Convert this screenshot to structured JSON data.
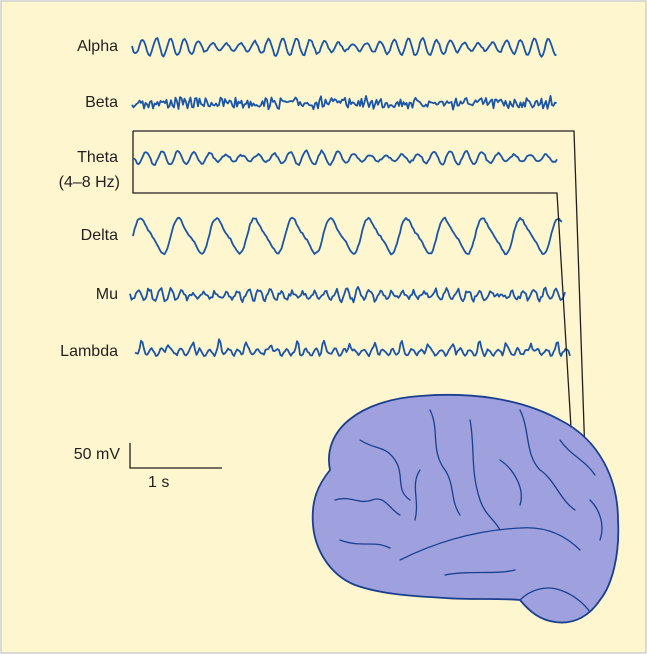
{
  "waves": [
    {
      "label": "Alpha"
    },
    {
      "label": "Beta"
    },
    {
      "label": "Theta",
      "sublabel": "(4–8 Hz)"
    },
    {
      "label": "Delta"
    },
    {
      "label": "Mu"
    },
    {
      "label": "Lambda"
    }
  ],
  "scale_bar": {
    "voltage": "50 mV",
    "time": "1 s"
  }
}
